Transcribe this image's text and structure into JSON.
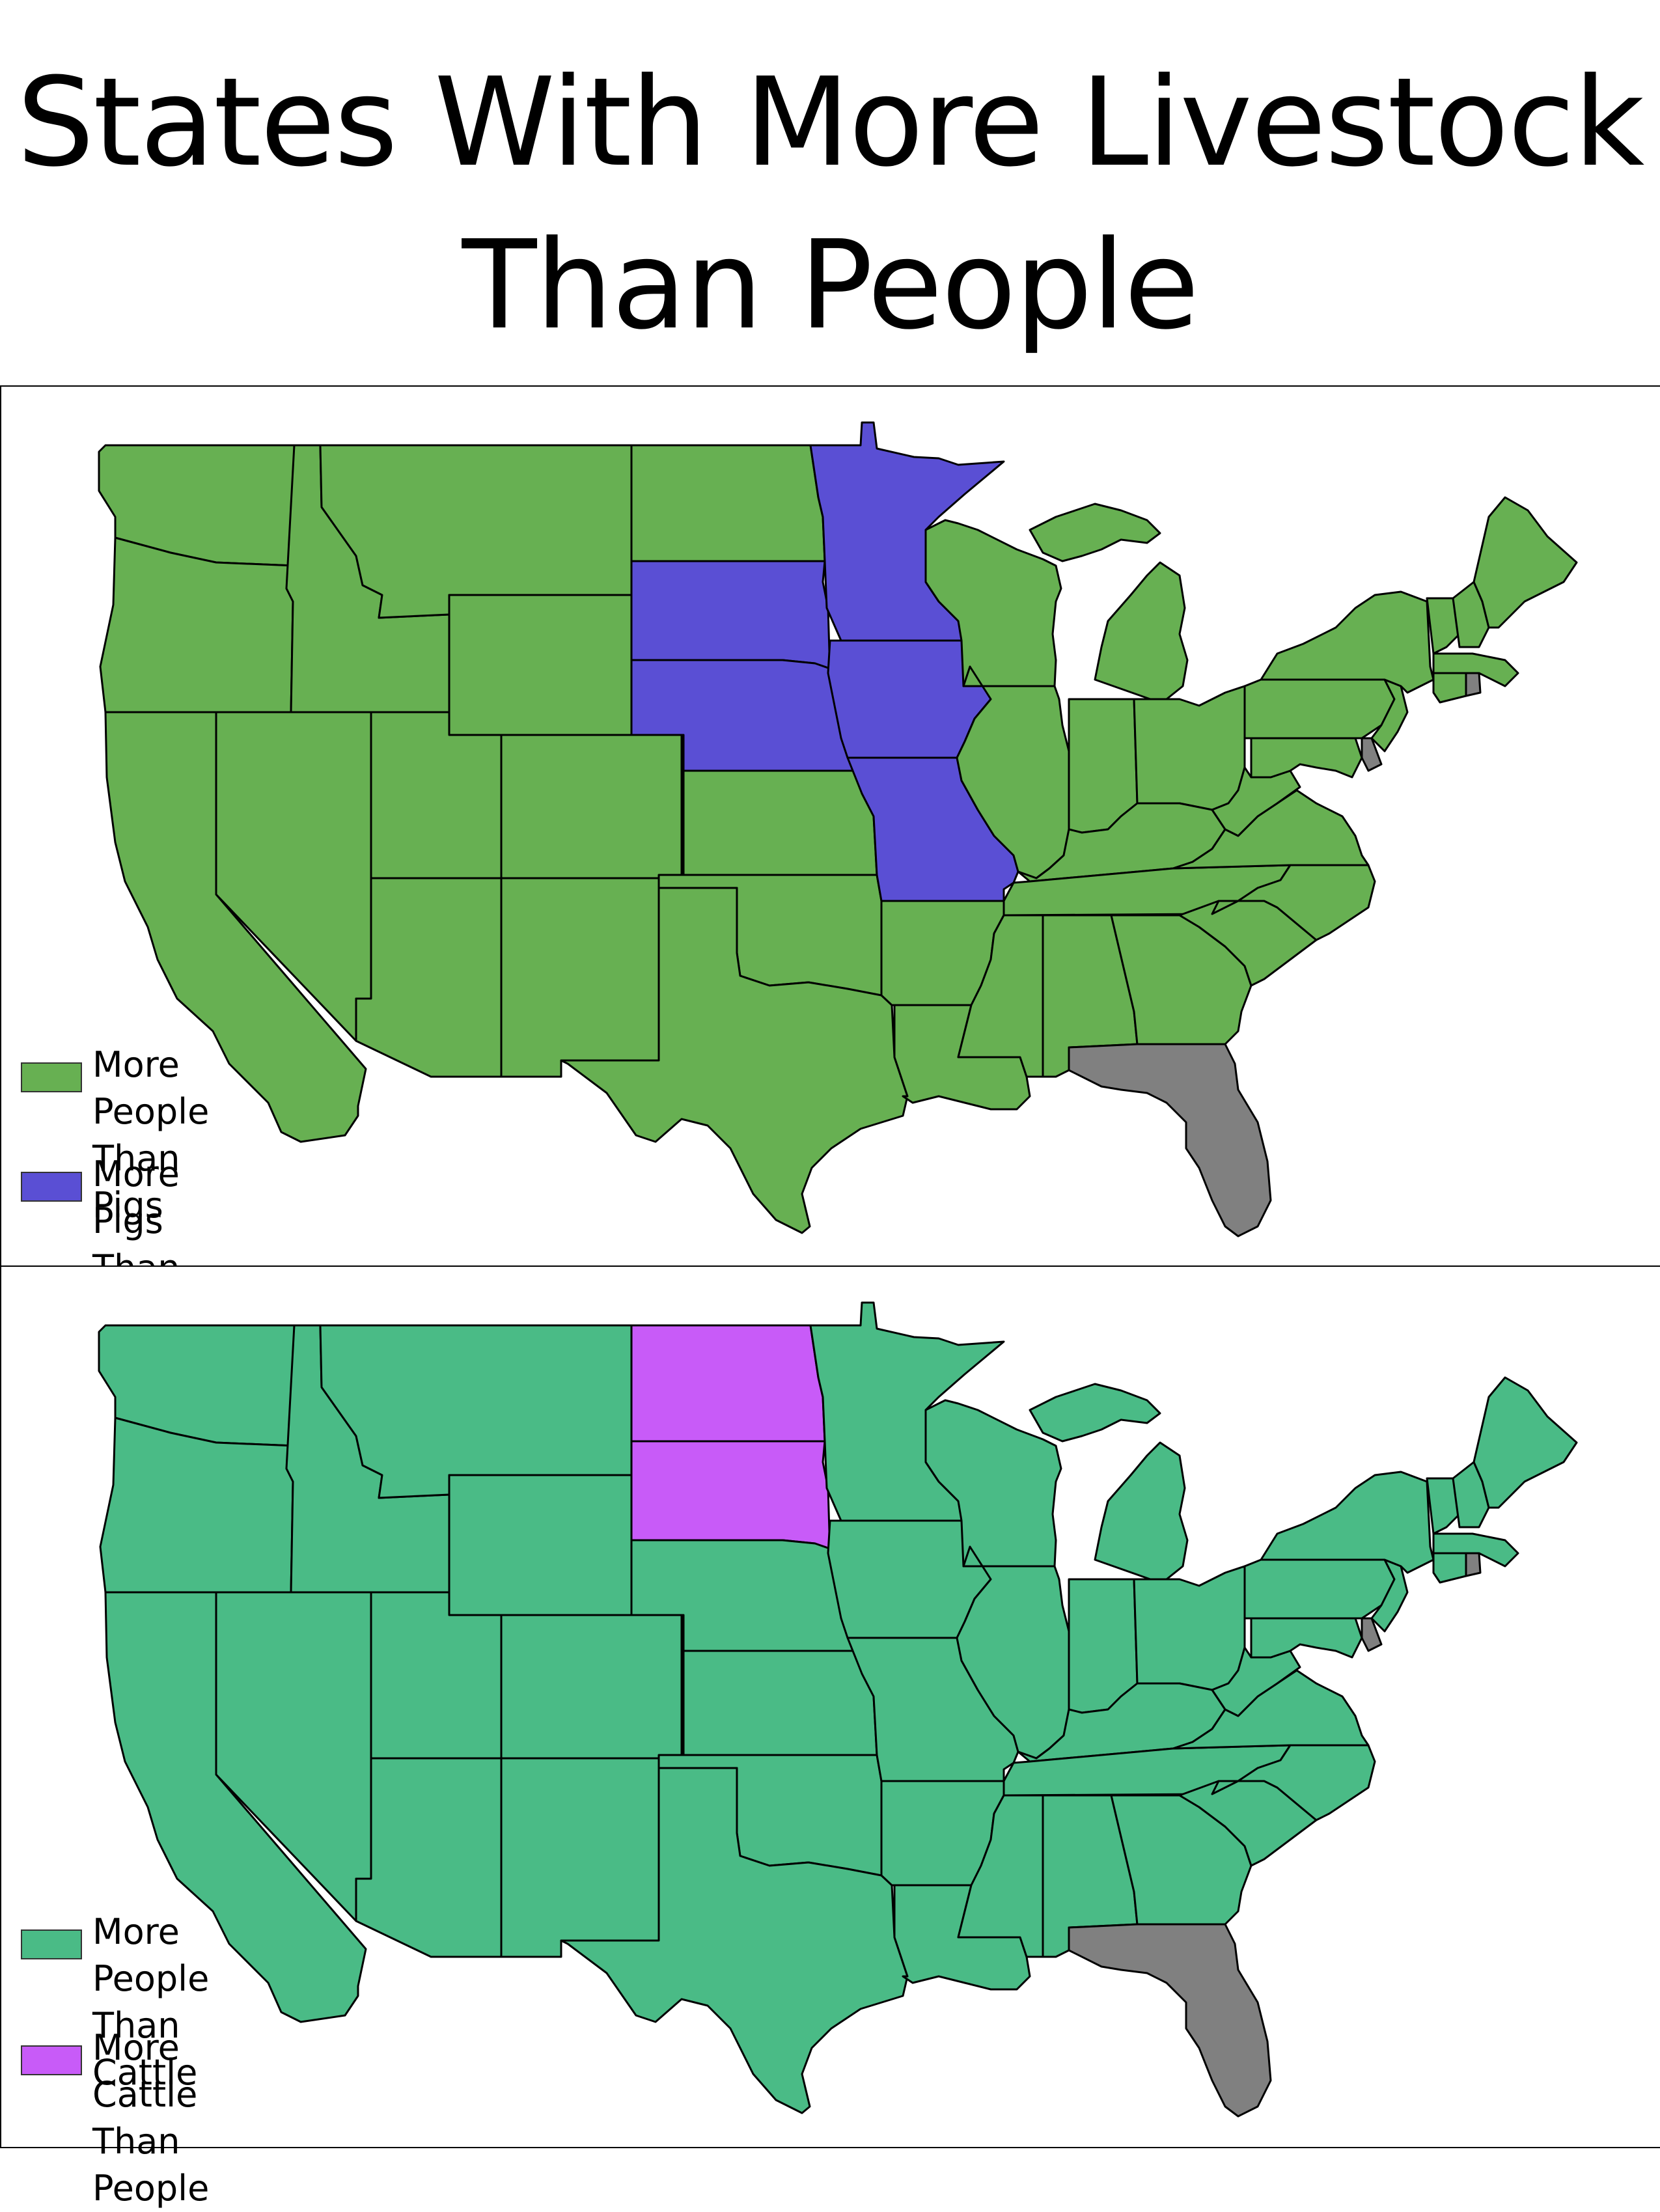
{
  "title": {
    "line1": "States With More Livestock",
    "line2": "Than People"
  },
  "colors": {
    "more_people_than_pigs": "#67b052",
    "more_pigs_than_people": "#5a4fd4",
    "more_people_than_cattle": "#4abb86",
    "more_cattle_than_people": "#c85bf8",
    "no_data": "#808080",
    "border": "#000000"
  },
  "maps": [
    {
      "id": "pigs",
      "highlighted_states": [
        "Minnesota",
        "South Dakota",
        "Iowa",
        "Nebraska",
        "Missouri"
      ],
      "no_data_states": [
        "Florida",
        "Delaware",
        "Rhode Island"
      ],
      "legend": [
        {
          "line1": "More People",
          "line2": "Than Pigs",
          "color_key": "more_people_than_pigs"
        },
        {
          "line1": "More Pigs",
          "line2": "Than People",
          "color_key": "more_pigs_than_people"
        }
      ]
    },
    {
      "id": "cattle",
      "highlighted_states": [
        "North Dakota",
        "South Dakota"
      ],
      "no_data_states": [
        "Florida",
        "Delaware",
        "Rhode Island"
      ],
      "legend": [
        {
          "line1": "More People",
          "line2": "Than Cattle",
          "color_key": "more_people_than_cattle"
        },
        {
          "line1": "More Cattle",
          "line2": "Than People",
          "color_key": "more_cattle_than_people"
        }
      ]
    }
  ]
}
